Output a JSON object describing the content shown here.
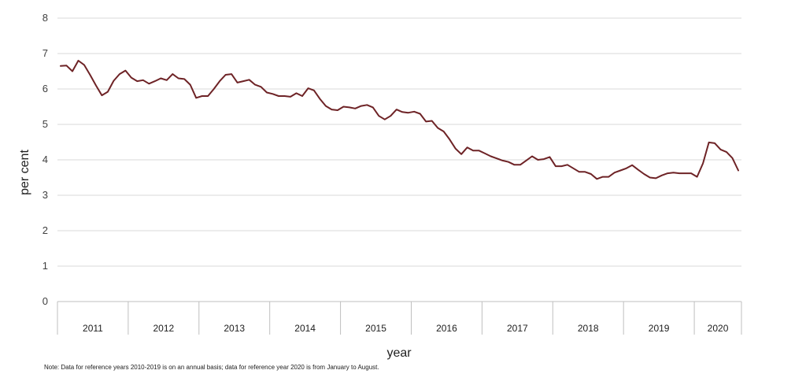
{
  "chart_data": {
    "type": "line",
    "xlabel": "year",
    "ylabel": "per cent",
    "ylim": [
      0,
      8
    ],
    "yticks": [
      "0",
      "1",
      "2",
      "3",
      "4",
      "5",
      "6",
      "7",
      "8"
    ],
    "grid": true,
    "x_unit": "month",
    "groups": [
      {
        "label": "2011",
        "months": 12
      },
      {
        "label": "2012",
        "months": 12
      },
      {
        "label": "2013",
        "months": 12
      },
      {
        "label": "2014",
        "months": 12
      },
      {
        "label": "2015",
        "months": 12
      },
      {
        "label": "2016",
        "months": 12
      },
      {
        "label": "2017",
        "months": 12
      },
      {
        "label": "2018",
        "months": 12
      },
      {
        "label": "2019",
        "months": 12
      },
      {
        "label": "2020",
        "months": 8
      }
    ],
    "color": "#6e2326",
    "series": [
      {
        "values": [
          6.65,
          6.66,
          6.5,
          6.8,
          6.68,
          6.4,
          6.1,
          5.82,
          5.92,
          6.23,
          6.42,
          6.52,
          6.32,
          6.22,
          6.25,
          6.15,
          6.22,
          6.3,
          6.25,
          6.42,
          6.3,
          6.28,
          6.12,
          5.75,
          5.8,
          5.8,
          6.0,
          6.22,
          6.4,
          6.42,
          6.18,
          6.22,
          6.26,
          6.12,
          6.06,
          5.9,
          5.86,
          5.8,
          5.8,
          5.78,
          5.88,
          5.8,
          6.02,
          5.96,
          5.72,
          5.52,
          5.42,
          5.4,
          5.5,
          5.48,
          5.45,
          5.52,
          5.55,
          5.48,
          5.24,
          5.14,
          5.24,
          5.42,
          5.35,
          5.33,
          5.36,
          5.3,
          5.08,
          5.1,
          4.9,
          4.8,
          4.58,
          4.32,
          4.16,
          4.35,
          4.26,
          4.26,
          4.18,
          4.1,
          4.04,
          3.98,
          3.94,
          3.86,
          3.86,
          3.98,
          4.1,
          4.0,
          4.02,
          4.08,
          3.82,
          3.82,
          3.86,
          3.76,
          3.66,
          3.66,
          3.6,
          3.46,
          3.52,
          3.52,
          3.64,
          3.7,
          3.76,
          3.85,
          3.72,
          3.6,
          3.5,
          3.48,
          3.56,
          3.62,
          3.64,
          3.62,
          3.62,
          3.62,
          3.52,
          3.9,
          4.49,
          4.47,
          4.29,
          4.22,
          4.05,
          3.7
        ]
      }
    ]
  },
  "note": "Note: Data for reference years 2010-2019 is on an annual basis; data for reference year 2020 is from January to August."
}
